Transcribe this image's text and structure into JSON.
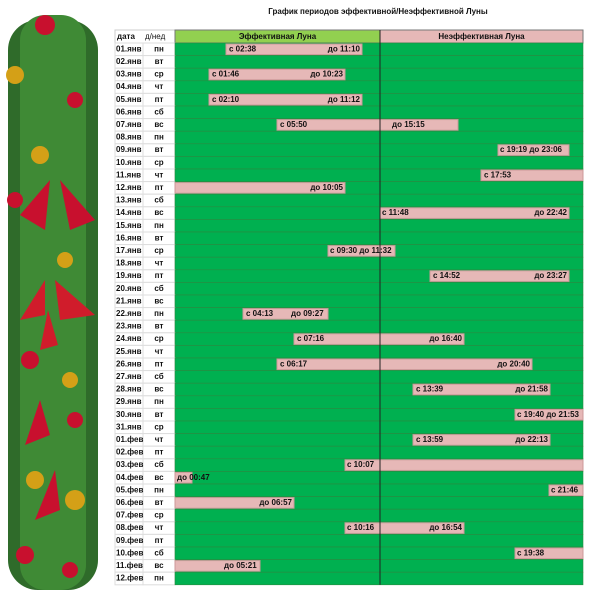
{
  "title": "График  периодов эффективной/Неэффективной Луны",
  "table": {
    "header": [
      "дата",
      "д/нед",
      "Эффективная Луна",
      "Неэффективная Луна"
    ],
    "rows": [
      {
        "date": "01.янв",
        "day": "пн",
        "labels": [
          "с 02:38",
          "до 11:10"
        ]
      },
      {
        "date": "02.янв",
        "day": "вт",
        "labels": []
      },
      {
        "date": "03.янв",
        "day": "ср",
        "labels": [
          "с 01:46",
          "до 10:23"
        ]
      },
      {
        "date": "04.янв",
        "day": "чт",
        "labels": []
      },
      {
        "date": "05.янв",
        "day": "пт",
        "labels": [
          "с 02:10",
          "до 11:12"
        ]
      },
      {
        "date": "06.янв",
        "day": "сб",
        "labels": []
      },
      {
        "date": "07.янв",
        "day": "вс",
        "labels": [
          "с 05:50",
          "до 15:15"
        ]
      },
      {
        "date": "08.янв",
        "day": "пн",
        "labels": []
      },
      {
        "date": "09.янв",
        "day": "вт",
        "labels": [
          "с 19:19 до 23:06"
        ]
      },
      {
        "date": "10.янв",
        "day": "ср",
        "labels": []
      },
      {
        "date": "11.янв",
        "day": "чт",
        "labels": [
          "с 17:53"
        ]
      },
      {
        "date": "12.янв",
        "day": "пт",
        "labels": [
          "до 10:05"
        ]
      },
      {
        "date": "13.янв",
        "day": "сб",
        "labels": []
      },
      {
        "date": "14.янв",
        "day": "вс",
        "labels": [
          "с  11:48",
          "до 22:42"
        ]
      },
      {
        "date": "15.янв",
        "day": "пн",
        "labels": []
      },
      {
        "date": "16.янв",
        "day": "вт",
        "labels": []
      },
      {
        "date": "17.янв",
        "day": "ср",
        "labels": [
          "с 09:30 до 11:32"
        ]
      },
      {
        "date": "18.янв",
        "day": "чт",
        "labels": []
      },
      {
        "date": "19.янв",
        "day": "пт",
        "labels": [
          "с 14:52",
          "до 23:27"
        ]
      },
      {
        "date": "20.янв",
        "day": "сб",
        "labels": []
      },
      {
        "date": "21.янв",
        "day": "вс",
        "labels": []
      },
      {
        "date": "22.янв",
        "day": "пн",
        "labels": [
          "с 04:13",
          "до 09:27"
        ]
      },
      {
        "date": "23.янв",
        "day": "вт",
        "labels": []
      },
      {
        "date": "24.янв",
        "day": "ср",
        "labels": [
          "с 07:16",
          "до 16:40"
        ]
      },
      {
        "date": "25.янв",
        "day": "чт",
        "labels": []
      },
      {
        "date": "26.янв",
        "day": "пт",
        "labels": [
          "с 06:17",
          "до 20:40"
        ]
      },
      {
        "date": "27.янв",
        "day": "сб",
        "labels": []
      },
      {
        "date": "28.янв",
        "day": "вс",
        "labels": [
          "с 13:39",
          "до 21:58"
        ]
      },
      {
        "date": "29.янв",
        "day": "пн",
        "labels": []
      },
      {
        "date": "30.янв",
        "day": "вт",
        "labels": [
          "с 19:40 до 21:53"
        ]
      },
      {
        "date": "31.янв",
        "day": "ср",
        "labels": []
      },
      {
        "date": "01.фев",
        "day": "чт",
        "labels": [
          "с 13:59",
          "до 22:13"
        ]
      },
      {
        "date": "02.фев",
        "day": "пт",
        "labels": []
      },
      {
        "date": "03.фев",
        "day": "сб",
        "labels": [
          "с 10:07"
        ]
      },
      {
        "date": "04.фев",
        "day": "вс",
        "labels": [
          "до 00:47"
        ]
      },
      {
        "date": "05.фев",
        "day": "пн",
        "labels": [
          "с 21:46"
        ]
      },
      {
        "date": "06.фев",
        "day": "вт",
        "labels": [
          "до 06:57"
        ]
      },
      {
        "date": "07.фев",
        "day": "ср",
        "labels": []
      },
      {
        "date": "08.фев",
        "day": "чт",
        "labels": [
          "с 10:16",
          "до 16:54"
        ]
      },
      {
        "date": "09.фев",
        "day": "пт",
        "labels": []
      },
      {
        "date": "10.фев",
        "day": "сб",
        "labels": [
          "с 19:38"
        ]
      },
      {
        "date": "11.фев",
        "day": "вс",
        "labels": [
          "до 05:21"
        ]
      },
      {
        "date": "12.фев",
        "day": "пн",
        "labels": []
      }
    ]
  }
}
